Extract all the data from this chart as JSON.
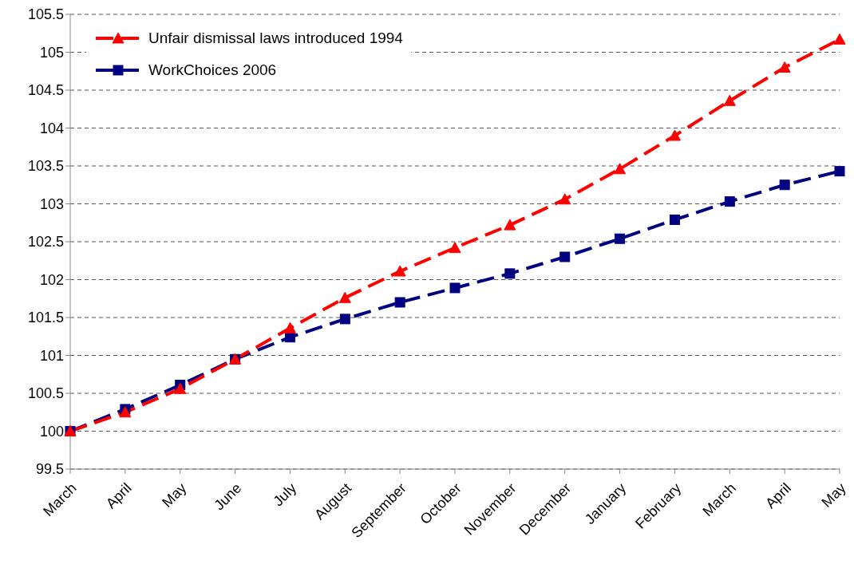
{
  "chart_data": {
    "type": "line",
    "categories": [
      "March",
      "April",
      "May",
      "June",
      "July",
      "August",
      "September",
      "October",
      "November",
      "December",
      "January",
      "February",
      "March",
      "April",
      "May"
    ],
    "series": [
      {
        "name": "Unfair dismissal laws introduced 1994",
        "color": "#ff0000",
        "marker": "triangle",
        "line_style": "dashed",
        "values": [
          100,
          100.25,
          100.56,
          100.95,
          101.36,
          101.76,
          102.11,
          102.42,
          102.72,
          103.06,
          103.46,
          103.9,
          104.36,
          104.8,
          105.17
        ]
      },
      {
        "name": "WorkChoices 2006",
        "color": "#000080",
        "marker": "square",
        "line_style": "dashed",
        "values": [
          100,
          100.29,
          100.61,
          100.95,
          101.24,
          101.48,
          101.7,
          101.89,
          102.08,
          102.3,
          102.54,
          102.79,
          103.03,
          103.25,
          103.43
        ]
      }
    ],
    "ylim": [
      99.5,
      105.5
    ],
    "yticks": [
      99.5,
      100,
      100.5,
      101,
      101.5,
      102,
      102.5,
      103,
      103.5,
      104,
      104.5,
      105,
      105.5
    ],
    "grid": "y",
    "legend": "top left"
  }
}
